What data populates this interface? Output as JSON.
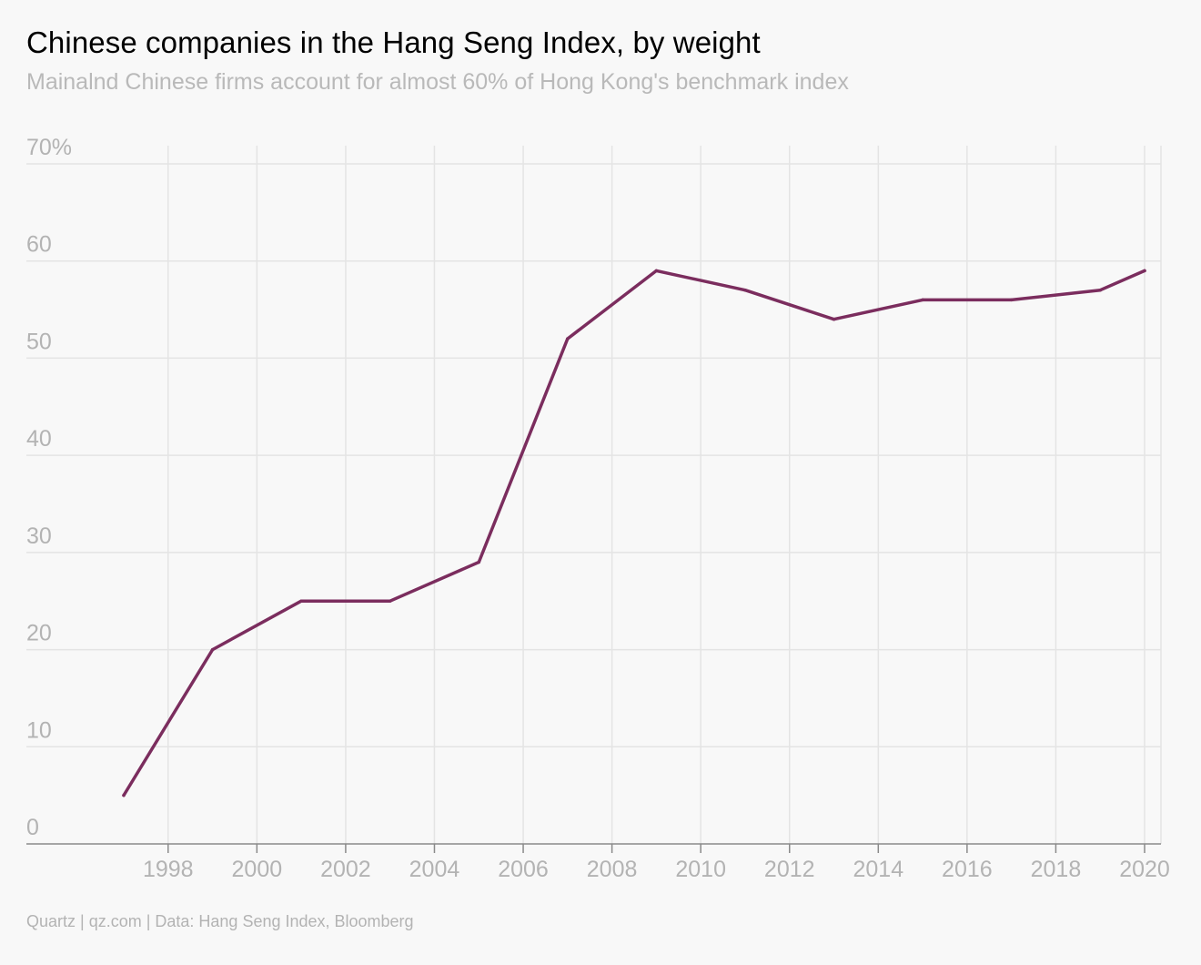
{
  "header": {
    "title": "Chinese companies in the Hang Seng Index, by weight",
    "subtitle": "Mainalnd Chinese firms account for almost 60% of Hong Kong's benchmark index"
  },
  "footer": {
    "source": "Quartz | qz.com | Data: Hang Seng Index, Bloomberg"
  },
  "colors": {
    "line": "#7b2d5e",
    "grid": "#e4e4e4",
    "axis": "#8a8a8a",
    "tick_text": "#b3b3b3",
    "subtitle": "#b9b9b9",
    "background": "#f8f8f8"
  },
  "chart_data": {
    "type": "line",
    "title": "Chinese companies in the Hang Seng Index, by weight",
    "subtitle": "Mainalnd Chinese firms account for almost 60% of Hong Kong's benchmark index",
    "xlabel": "",
    "ylabel": "",
    "x": [
      1997,
      1999,
      2001,
      2003,
      2005,
      2007,
      2009,
      2011,
      2013,
      2015,
      2017,
      2019,
      2020
    ],
    "series": [
      {
        "values": [
          5,
          20,
          25,
          25,
          29,
          52,
          59,
          57,
          54,
          56,
          56,
          57,
          59
        ]
      }
    ],
    "xlim": [
      1996,
      2020.4
    ],
    "ylim": [
      0,
      70
    ],
    "x_ticks": [
      1998,
      2000,
      2002,
      2004,
      2006,
      2008,
      2010,
      2012,
      2014,
      2016,
      2018,
      2020
    ],
    "x_tick_labels": [
      "1998",
      "2000",
      "2002",
      "2004",
      "2006",
      "2008",
      "2010",
      "2012",
      "2014",
      "2016",
      "2018",
      "2020"
    ],
    "y_ticks": [
      0,
      10,
      20,
      30,
      40,
      50,
      60,
      70
    ],
    "y_tick_labels": [
      "0",
      "10",
      "20",
      "30",
      "40",
      "50",
      "60",
      "70%"
    ],
    "grid": true,
    "legend": "none"
  }
}
